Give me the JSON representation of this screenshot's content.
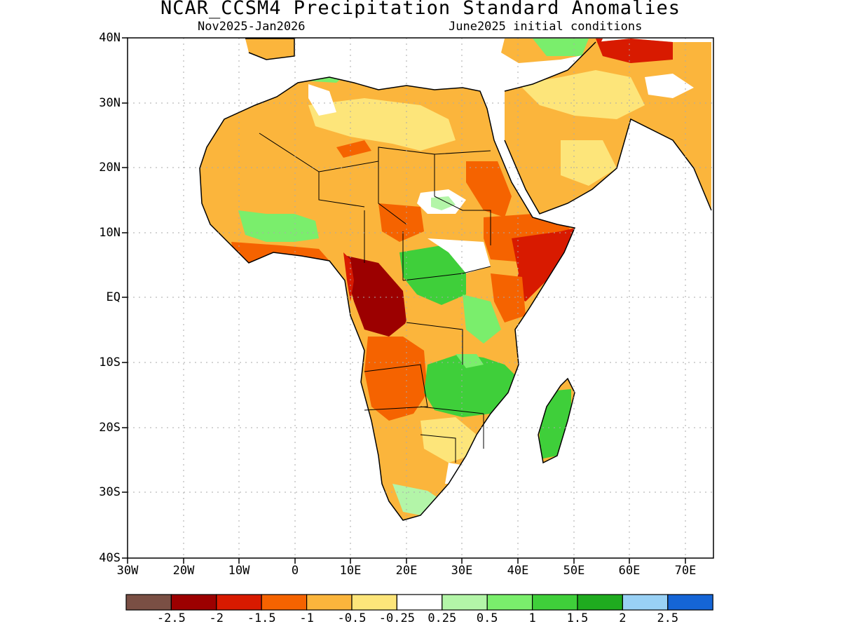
{
  "title": "NCAR_CCSM4 Precipitation Standard Anomalies",
  "subtitle_left": "Nov2025-Jan2026",
  "subtitle_right": "June2025 initial conditions",
  "lat_labels": [
    "40N",
    "30N",
    "20N",
    "10N",
    "EQ",
    "10S",
    "20S",
    "30S",
    "40S"
  ],
  "lon_labels": [
    "30W",
    "20W",
    "10W",
    "0",
    "10E",
    "20E",
    "30E",
    "40E",
    "50E",
    "60E",
    "70E"
  ],
  "colorbar": {
    "labels": [
      "-2.5",
      "-2",
      "-1.5",
      "-1",
      "-0.5",
      "-0.25",
      "0.25",
      "0.5",
      "1",
      "1.5",
      "2",
      "2.5"
    ],
    "colors": [
      "#7a4f44",
      "#9c0000",
      "#d81a00",
      "#f56300",
      "#fbb53c",
      "#fde57a",
      "#ffffff",
      "#b3f5a8",
      "#7aee6c",
      "#3fcf3a",
      "#1fab1f",
      "#99d1f5",
      "#1565d6"
    ]
  },
  "map": {
    "lat_range": [
      -40,
      40
    ],
    "lon_range": [
      -30,
      75
    ],
    "regions": [
      {
        "name": "north-africa-moderate-dry",
        "color": "#fbb53c"
      },
      {
        "name": "sahara-weak-dry",
        "color": "#fde57a"
      },
      {
        "name": "atlas-wet",
        "color": "#7aee6c"
      },
      {
        "name": "west-africa-guinea-wet",
        "color": "#7aee6c"
      },
      {
        "name": "gulf-guinea-coast-dry",
        "color": "#f56300"
      },
      {
        "name": "cameroon-gabon-congo-dry",
        "color": "#9c0000"
      },
      {
        "name": "central-africa-wet",
        "color": "#3fcf3a"
      },
      {
        "name": "sudan-ethiopia-dry",
        "color": "#f56300"
      },
      {
        "name": "horn-of-africa-dry",
        "color": "#d81a00"
      },
      {
        "name": "east-africa-dry",
        "color": "#f56300"
      },
      {
        "name": "angola-dry",
        "color": "#f56300"
      },
      {
        "name": "zambia-mozambique-wet",
        "color": "#3fcf3a"
      },
      {
        "name": "madagascar-wet",
        "color": "#3fcf3a"
      },
      {
        "name": "southern-africa-weak-dry",
        "color": "#fde57a"
      },
      {
        "name": "arabia-iran-dry",
        "color": "#fbb53c"
      },
      {
        "name": "iran-strong-dry",
        "color": "#d81a00"
      }
    ]
  }
}
